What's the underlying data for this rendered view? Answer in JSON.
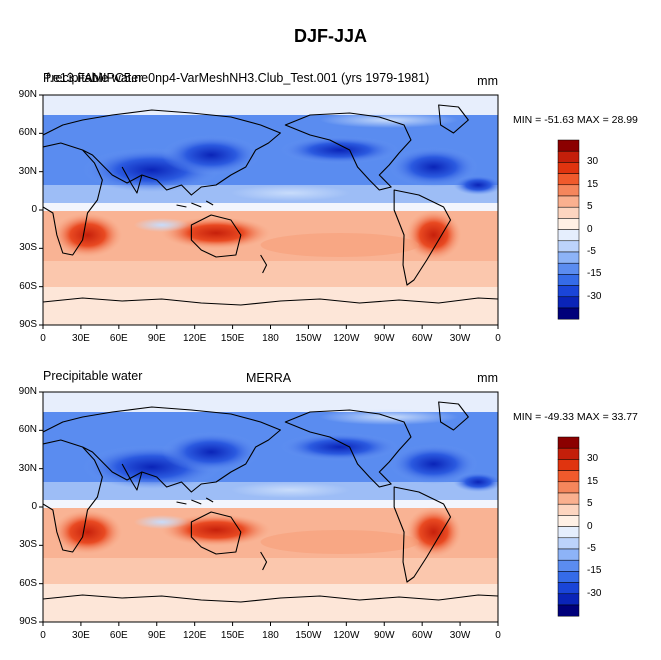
{
  "title": "DJF-JJA",
  "panels": [
    {
      "left_label": "Precipitable water",
      "center_label": "f.e13.FAMIPC5.ne0np4-VarMeshNH3.Club_Test.001 (yrs 1979-1981)",
      "units": "mm",
      "stats": "MIN = -51.63 MAX =  28.99"
    },
    {
      "left_label": "Precipitable water",
      "center_label": "MERRA",
      "units": "mm",
      "stats": "MIN = -49.33 MAX =  33.77"
    }
  ],
  "lat_ticks": [
    "90N",
    "60N",
    "30N",
    "0",
    "30S",
    "60S",
    "90S"
  ],
  "lon_ticks": [
    "0",
    "30E",
    "60E",
    "90E",
    "120E",
    "150E",
    "180",
    "150W",
    "120W",
    "90W",
    "60W",
    "30W",
    "0"
  ],
  "colorbar": {
    "labels": [
      "30",
      "15",
      "5",
      "0",
      "-5",
      "-15",
      "-30"
    ],
    "colors": [
      "#8b0000",
      "#c41f0a",
      "#e0340f",
      "#f05a2c",
      "#f5865c",
      "#fab08f",
      "#fdd5c0",
      "#fff0e5",
      "#e5eefd",
      "#bcd3fb",
      "#8db3f7",
      "#5b8cf0",
      "#356be8",
      "#1a45d8",
      "#0a24b8",
      "#00007a"
    ]
  }
}
